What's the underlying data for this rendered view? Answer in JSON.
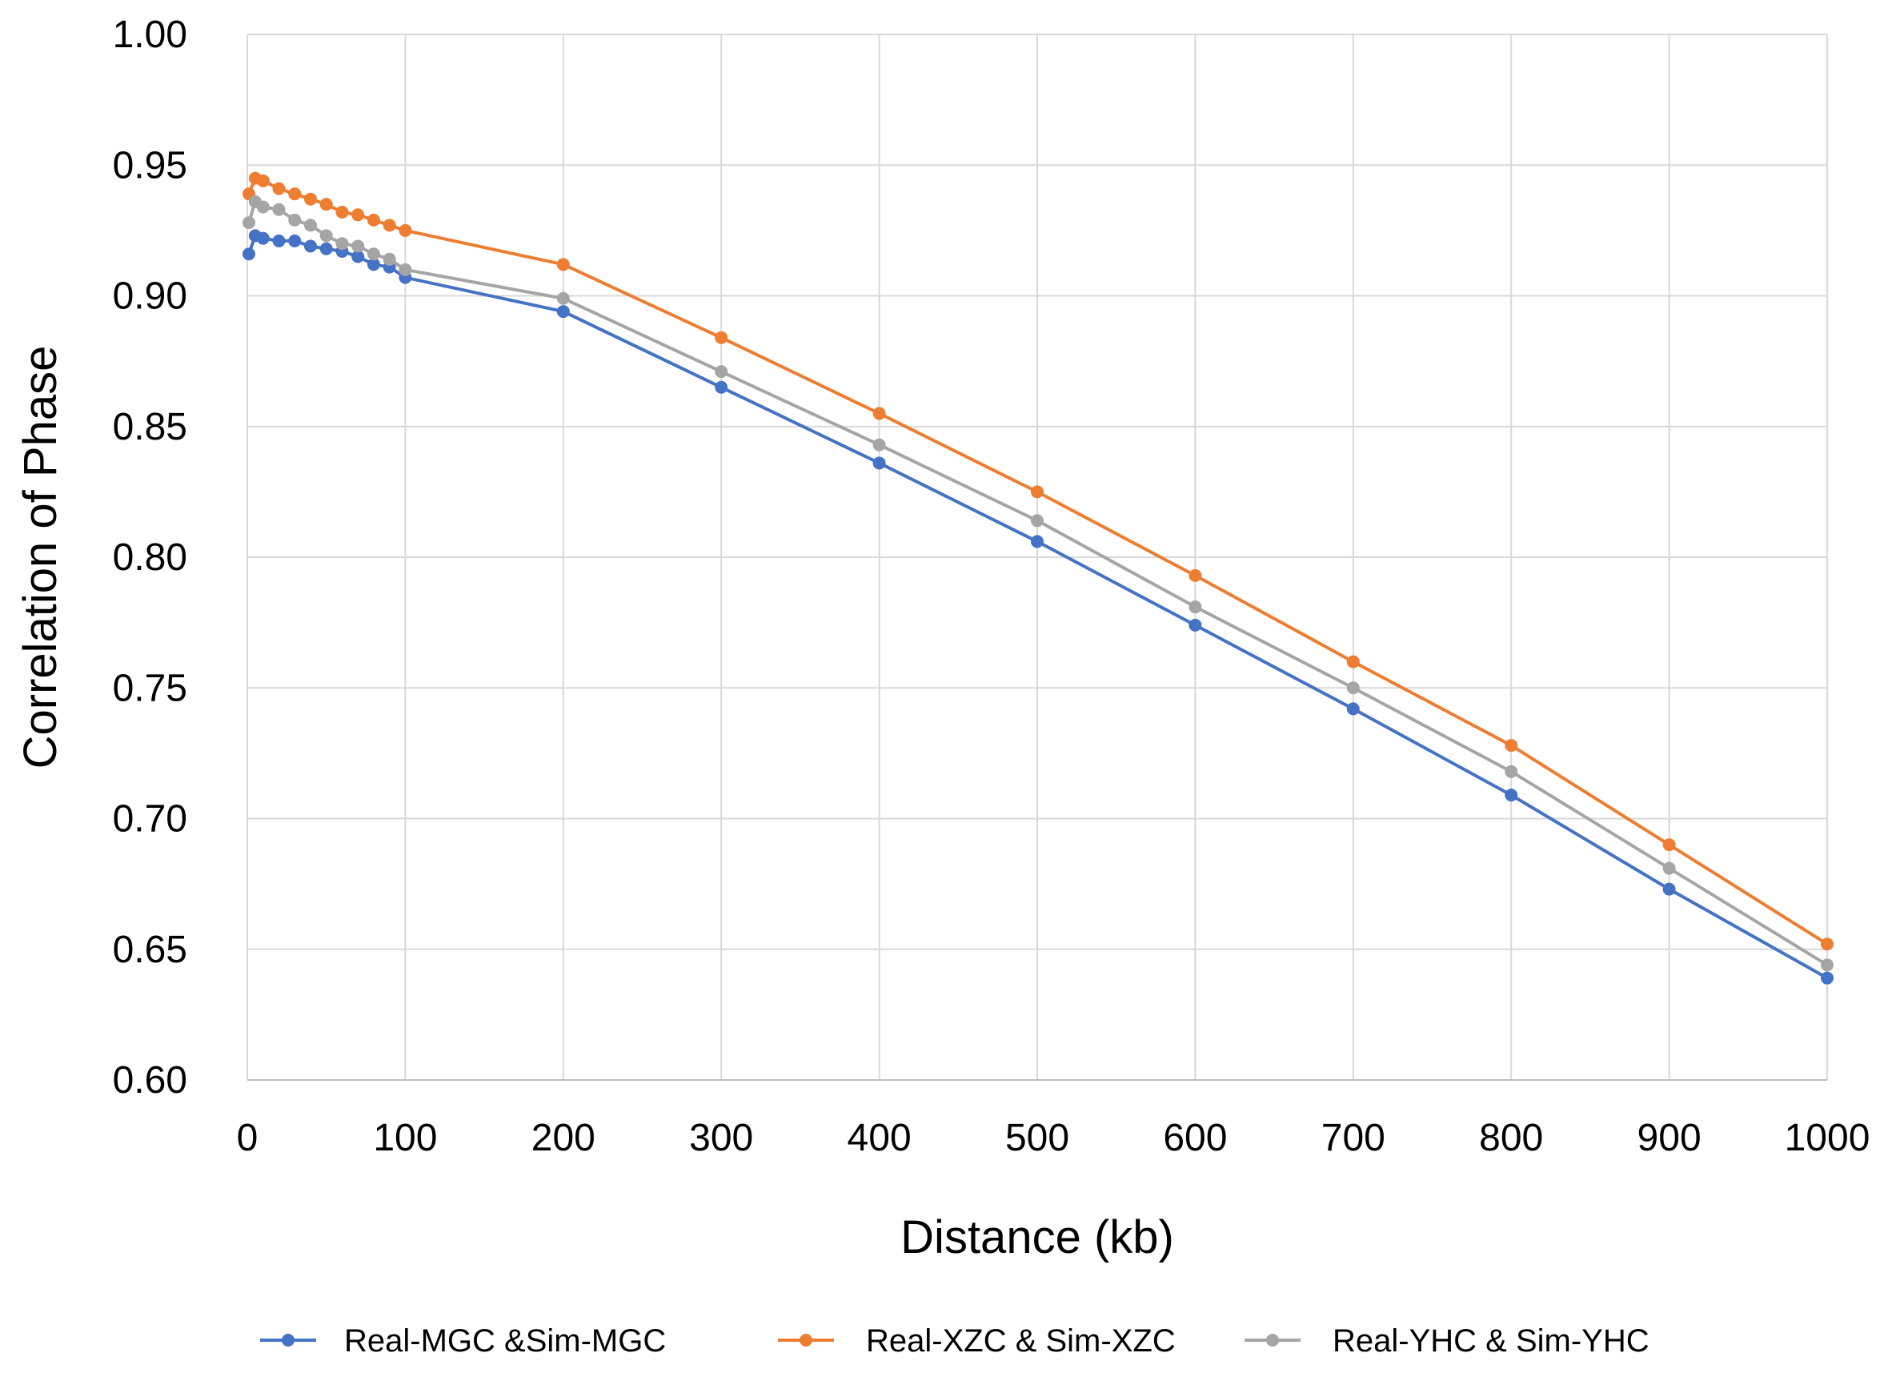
{
  "chart_data": {
    "type": "line",
    "title": "",
    "xlabel": "Distance (kb)",
    "ylabel": "Correlation of Phase",
    "xlim": [
      0,
      1000
    ],
    "ylim": [
      0.6,
      1.0
    ],
    "xticks": [
      0,
      100,
      200,
      300,
      400,
      500,
      600,
      700,
      800,
      900,
      1000
    ],
    "xtick_labels": [
      "0",
      "100",
      "200",
      "300",
      "400",
      "500",
      "600",
      "700",
      "800",
      "900",
      "1000"
    ],
    "yticks": [
      0.6,
      0.65,
      0.7,
      0.75,
      0.8,
      0.85,
      0.9,
      0.95,
      1.0
    ],
    "ytick_labels": [
      "0.60",
      "0.65",
      "0.70",
      "0.75",
      "0.80",
      "0.85",
      "0.90",
      "0.95",
      "1.00"
    ],
    "grid": true,
    "legend_position": "bottom",
    "x": [
      1,
      5,
      10,
      20,
      30,
      40,
      50,
      60,
      70,
      80,
      90,
      100,
      200,
      300,
      400,
      500,
      600,
      700,
      800,
      900,
      1000
    ],
    "series": [
      {
        "name": "Real-MGC &Sim-MGC",
        "color": "#4472C4",
        "values": [
          0.916,
          0.923,
          0.922,
          0.921,
          0.921,
          0.919,
          0.918,
          0.917,
          0.915,
          0.912,
          0.911,
          0.907,
          0.894,
          0.865,
          0.836,
          0.806,
          0.774,
          0.742,
          0.709,
          0.673,
          0.639
        ]
      },
      {
        "name": "Real-XZC & Sim-XZC",
        "color": "#ED7D31",
        "values": [
          0.939,
          0.945,
          0.944,
          0.941,
          0.939,
          0.937,
          0.935,
          0.932,
          0.931,
          0.929,
          0.927,
          0.925,
          0.912,
          0.884,
          0.855,
          0.825,
          0.793,
          0.76,
          0.728,
          0.69,
          0.652
        ]
      },
      {
        "name": "Real-YHC & Sim-YHC",
        "color": "#A5A5A5",
        "values": [
          0.928,
          0.936,
          0.934,
          0.933,
          0.929,
          0.927,
          0.923,
          0.92,
          0.919,
          0.916,
          0.914,
          0.91,
          0.899,
          0.871,
          0.843,
          0.814,
          0.781,
          0.75,
          0.718,
          0.681,
          0.644
        ]
      }
    ]
  }
}
